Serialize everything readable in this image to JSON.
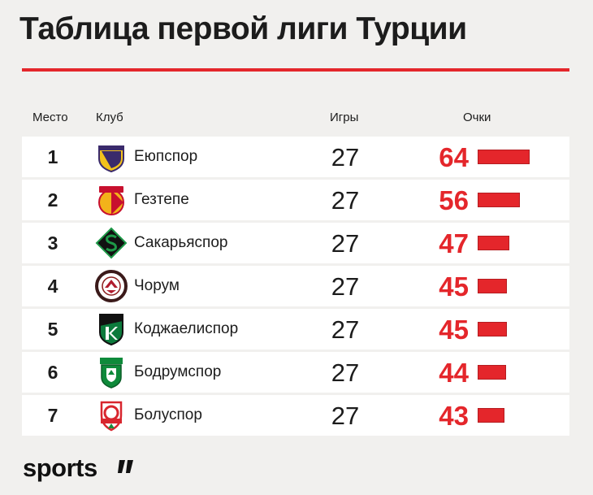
{
  "title": "Таблица первой лиги Турции",
  "headers": {
    "place": "Место",
    "club": "Клуб",
    "games": "Игры",
    "points": "Очки"
  },
  "brand": "sports",
  "colors": {
    "accent": "#e4262b",
    "background": "#f1f0ee",
    "row": "#ffffff"
  },
  "chart_data": {
    "type": "table",
    "columns": [
      "Место",
      "Клуб",
      "Игры",
      "Очки"
    ],
    "rows": [
      {
        "place": "1",
        "club": "Еюпспор",
        "games": "27",
        "points": 64,
        "logo": "eyupspor-logo"
      },
      {
        "place": "2",
        "club": "Гезтепе",
        "games": "27",
        "points": 56,
        "logo": "goztepe-logo"
      },
      {
        "place": "3",
        "club": "Сакарьяспор",
        "games": "27",
        "points": 47,
        "logo": "sakaryaspor-logo"
      },
      {
        "place": "4",
        "club": "Чорум",
        "games": "27",
        "points": 45,
        "logo": "corum-logo"
      },
      {
        "place": "5",
        "club": "Коджаелиспор",
        "games": "27",
        "points": 45,
        "logo": "kocaelispor-logo"
      },
      {
        "place": "6",
        "club": "Бодрумспор",
        "games": "27",
        "points": 44,
        "logo": "bodrumspor-logo"
      },
      {
        "place": "7",
        "club": "Болуспор",
        "games": "27",
        "points": 43,
        "logo": "boluspor-logo"
      }
    ]
  }
}
